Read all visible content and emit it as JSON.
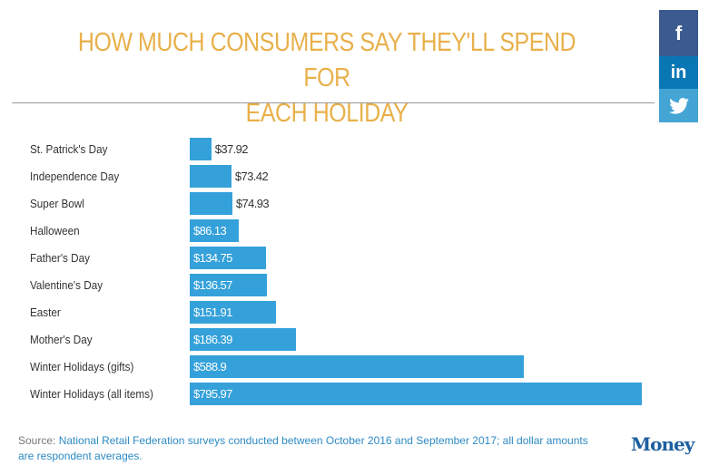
{
  "header": {
    "title_line1": "HOW MUCH CONSUMERS SAY THEY'LL SPEND FOR",
    "title_line2": "EACH HOLIDAY"
  },
  "social": {
    "facebook": {
      "icon": "facebook-icon",
      "glyph": "f",
      "color": "#3b5a8f"
    },
    "linkedin": {
      "icon": "linkedin-icon",
      "glyph": "in",
      "color": "#0a77b5"
    },
    "twitter": {
      "icon": "twitter-icon",
      "color": "#44a4d4"
    }
  },
  "chart_data": {
    "type": "bar",
    "orientation": "horizontal",
    "title": "HOW MUCH CONSUMERS SAY THEY'LL SPEND FOR EACH HOLIDAY",
    "categories": [
      "St. Patrick's Day",
      "Independence Day",
      "Super Bowl",
      "Halloween",
      "Father's Day",
      "Valentine's Day",
      "Easter",
      "Mother's Day",
      "Winter Holidays (gifts)",
      "Winter Holidays (all items)"
    ],
    "values": [
      37.92,
      73.42,
      74.93,
      86.13,
      134.75,
      136.57,
      151.91,
      186.39,
      588.9,
      795.97
    ],
    "value_labels": [
      "$37.92",
      "$73.42",
      "$74.93",
      "$86.13",
      "$134.75",
      "$136.57",
      "$151.91",
      "$186.39",
      "$588.9",
      "$795.97"
    ],
    "bar_color": "#34a1da",
    "xlim": [
      0,
      795.97
    ],
    "grid": false,
    "legend": "none",
    "xlabel": "",
    "ylabel": ""
  },
  "footer": {
    "source_prefix": "Source: ",
    "source_text": "National Retail Federation surveys conducted between October 2016 and September 2017; all dollar amounts are respondent averages.",
    "brand": "Money"
  }
}
